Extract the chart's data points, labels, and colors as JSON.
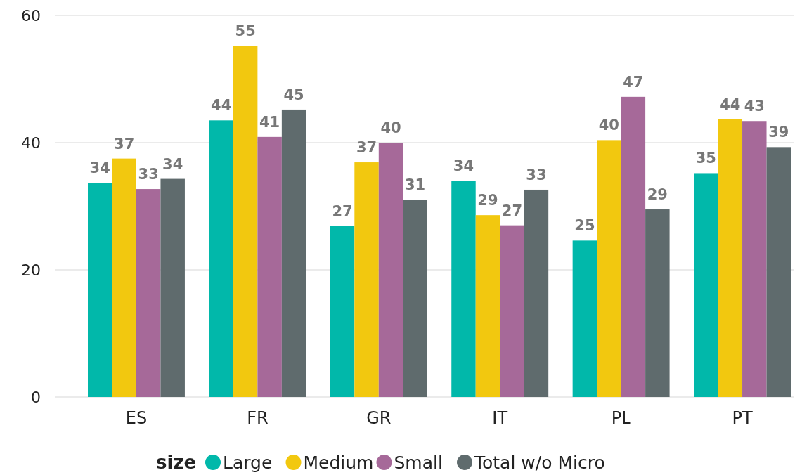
{
  "chart_data": {
    "type": "bar",
    "categories": [
      "ES",
      "FR",
      "GR",
      "IT",
      "PL",
      "PT"
    ],
    "legend_title": "size",
    "legend": "bottom",
    "grid": "y",
    "ylim": [
      0,
      60
    ],
    "yticks": [
      0,
      20,
      40,
      60
    ],
    "series": [
      {
        "name": "Large",
        "color": "#01b8aa",
        "values": [
          33.7,
          43.5,
          26.9,
          34.0,
          24.6,
          35.2
        ],
        "value_labels": [
          "34",
          "44",
          "27",
          "34",
          "25",
          "35"
        ]
      },
      {
        "name": "Medium",
        "color": "#f2c80f",
        "values": [
          37.5,
          55.2,
          36.9,
          28.6,
          40.4,
          43.7
        ],
        "value_labels": [
          "37",
          "55",
          "37",
          "29",
          "40",
          "44"
        ]
      },
      {
        "name": "Small",
        "color": "#a66999",
        "values": [
          32.7,
          40.9,
          40.0,
          27.0,
          47.2,
          43.4
        ],
        "value_labels": [
          "33",
          "41",
          "40",
          "27",
          "47",
          "43"
        ]
      },
      {
        "name": "Total w/o Micro",
        "color": "#5f6b6d",
        "values": [
          34.3,
          45.2,
          31.0,
          32.6,
          29.5,
          39.3
        ],
        "value_labels": [
          "34",
          "45",
          "31",
          "33",
          "29",
          "39"
        ]
      }
    ]
  }
}
